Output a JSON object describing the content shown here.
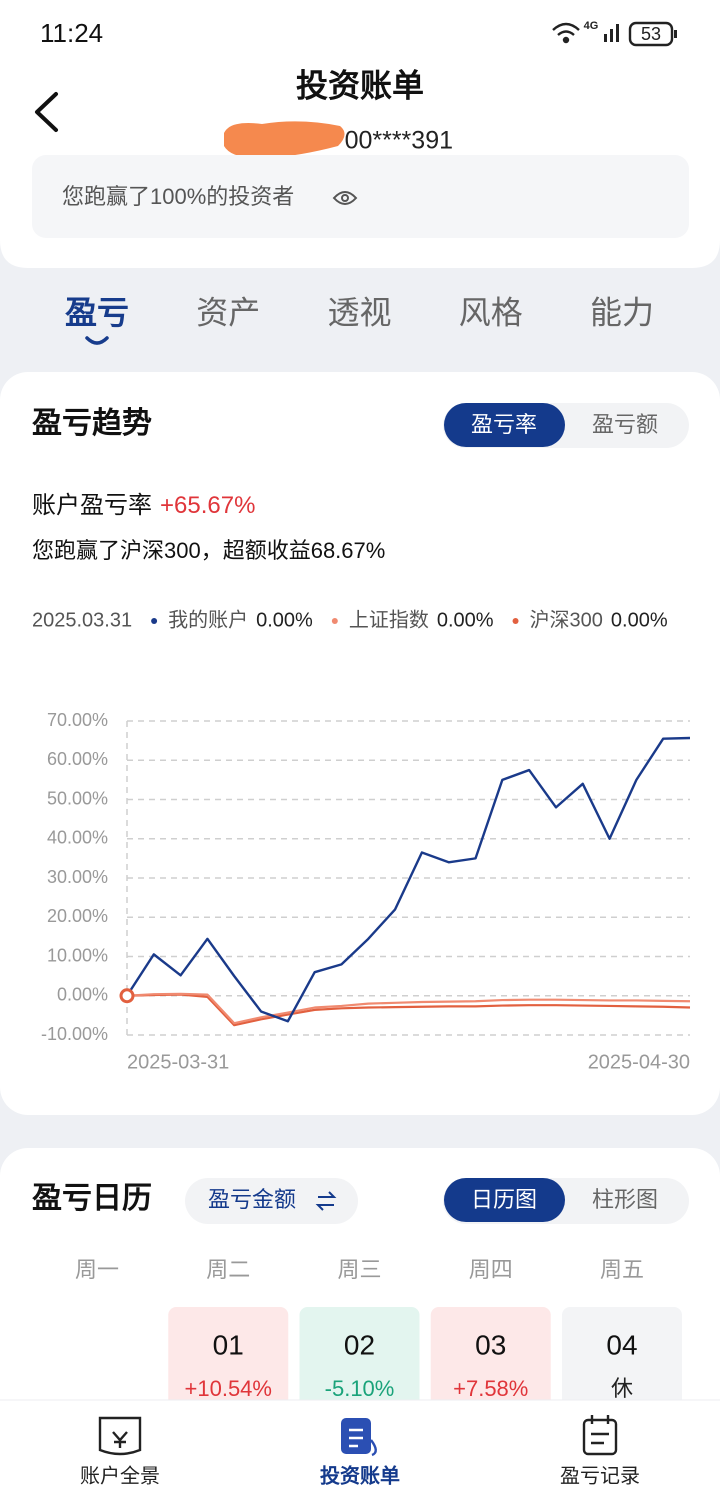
{
  "status_bar": {
    "time": "11:24",
    "network": "4G",
    "battery": "53"
  },
  "header": {
    "title": "投资账单",
    "account": "00****391",
    "banner": "您跑赢了100%的投资者"
  },
  "tabs": {
    "items": [
      "盈亏",
      "资产",
      "透视",
      "风格",
      "能力"
    ],
    "active": 0
  },
  "trend": {
    "title": "盈亏趋势",
    "toggle": [
      "盈亏率",
      "盈亏额"
    ],
    "active_toggle": 0,
    "rate_label": "账户盈亏率",
    "rate_value": "+65.67%",
    "summary": "您跑赢了沪深300，超额收益68.67%"
  },
  "chart_data": {
    "type": "line",
    "legend_date": "2025.03.31",
    "legend_values": [
      "0.00%",
      "0.00%",
      "0.00%"
    ],
    "categories": [
      "2025-03-31",
      null,
      null,
      null,
      null,
      null,
      null,
      null,
      null,
      null,
      null,
      null,
      null,
      null,
      null,
      null,
      null,
      null,
      null,
      null,
      null,
      "2025-04-30"
    ],
    "series": [
      {
        "name": "我的账户",
        "color": "#1a3a8a",
        "values": [
          0,
          10.54,
          5.2,
          14.5,
          5,
          -4,
          -6.5,
          6,
          8,
          14.5,
          22,
          36.5,
          34,
          35,
          55,
          57.5,
          48,
          54,
          40,
          55,
          65.5,
          65.67
        ]
      },
      {
        "name": "上证指数",
        "color": "#f08a70",
        "values": [
          0,
          0.4,
          0.5,
          0.3,
          -7,
          -5.5,
          -4.3,
          -3.0,
          -2.6,
          -2.0,
          -1.8,
          -1.6,
          -1.5,
          -1.4,
          -1.1,
          -1.0,
          -1.0,
          -1.1,
          -1.2,
          -1.2,
          -1.3,
          -1.4
        ]
      },
      {
        "name": "沪深300",
        "color": "#e2603f",
        "values": [
          0,
          0.2,
          0.3,
          -0.3,
          -7.5,
          -6,
          -4.8,
          -3.6,
          -3.2,
          -3.0,
          -2.9,
          -2.8,
          -2.7,
          -2.7,
          -2.5,
          -2.4,
          -2.4,
          -2.5,
          -2.6,
          -2.7,
          -2.8,
          -3.0
        ]
      }
    ],
    "ylim": [
      -10,
      70
    ],
    "yticks": [
      {
        "value": -10,
        "label": "-10.00%"
      },
      {
        "value": 0,
        "label": "0.00%"
      },
      {
        "value": 10,
        "label": "10.00%"
      },
      {
        "value": 20,
        "label": "20.00%"
      },
      {
        "value": 30,
        "label": "30.00%"
      },
      {
        "value": 40,
        "label": "40.00%"
      },
      {
        "value": 50,
        "label": "50.00%"
      },
      {
        "value": 60,
        "label": "60.00%"
      },
      {
        "value": 70,
        "label": "70.00%"
      }
    ],
    "grid": true
  },
  "calendar": {
    "title": "盈亏日历",
    "mode": "盈亏金额",
    "view_toggle": [
      "日历图",
      "柱形图"
    ],
    "active_view": 0,
    "weekdays": [
      "周一",
      "周二",
      "周三",
      "周四",
      "周五"
    ],
    "rows": [
      [
        null,
        {
          "date": "01",
          "value": "+10.54%"
        },
        {
          "date": "02",
          "value": "-5.10%"
        },
        {
          "date": "03",
          "value": "+7.58%"
        },
        {
          "date": "04",
          "value": "休"
        }
      ]
    ]
  },
  "bottom_nav": {
    "items": [
      "账户全景",
      "投资账单",
      "盈亏记录"
    ],
    "active": 1
  }
}
